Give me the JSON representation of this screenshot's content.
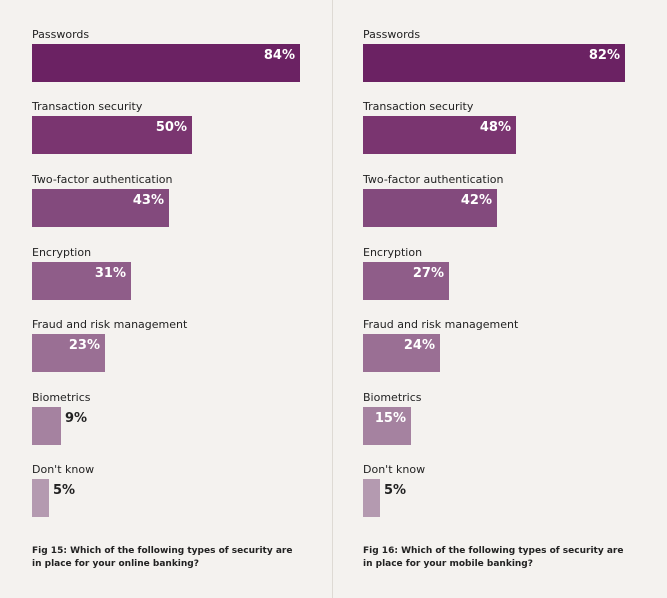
{
  "colors": [
    "#6b2263",
    "#7a3570",
    "#834a7d",
    "#8f5d89",
    "#9a6f94",
    "#a582a0",
    "#b49ab0"
  ],
  "chart_data": [
    {
      "type": "bar",
      "orientation": "horizontal",
      "categories": [
        "Passwords",
        "Transaction security",
        "Two-factor authentication",
        "Encryption",
        "Fraud and risk management",
        "Biometrics",
        "Don't know"
      ],
      "values": [
        84,
        50,
        43,
        31,
        23,
        9,
        5
      ],
      "value_labels": [
        "84%",
        "50%",
        "43%",
        "31%",
        "23%",
        "9%",
        "5%"
      ],
      "caption_lines": [
        "Fig 15: Which of the following types of security are",
        "in place for your online banking?"
      ],
      "grid": false
    },
    {
      "type": "bar",
      "orientation": "horizontal",
      "categories": [
        "Passwords",
        "Transaction security",
        "Two-factor authentication",
        "Encryption",
        "Fraud and risk management",
        "Biometrics",
        "Don't know"
      ],
      "values": [
        82,
        48,
        42,
        27,
        24,
        15,
        5
      ],
      "value_labels": [
        "82%",
        "48%",
        "42%",
        "27%",
        "24%",
        "15%",
        "5%"
      ],
      "caption_lines": [
        "Fig 16: Which of the following types of security are",
        "in place for your mobile banking?"
      ],
      "grid": false
    }
  ]
}
